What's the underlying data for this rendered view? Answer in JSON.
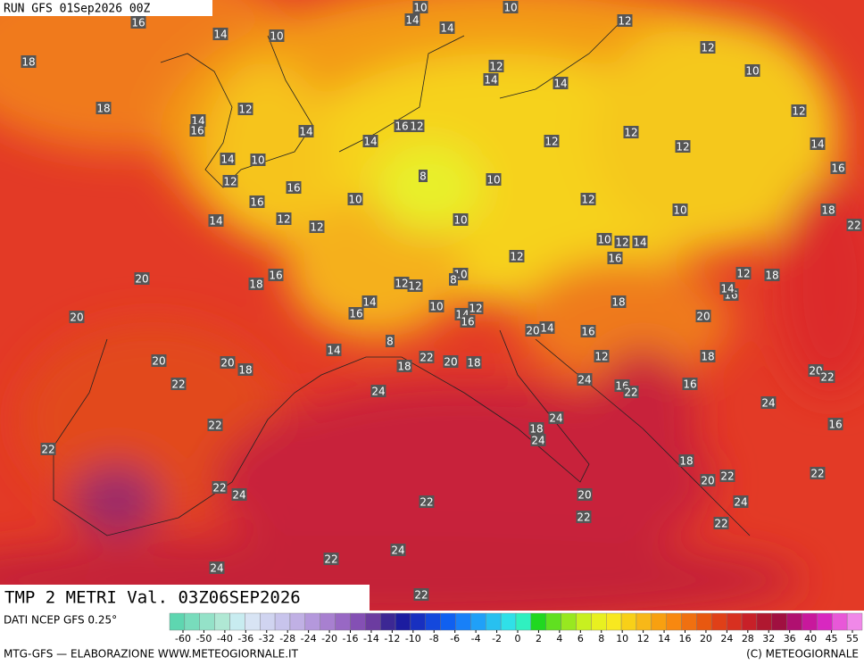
{
  "header": {
    "run": "RUN GFS 01Sep2026 00Z",
    "field": "TMP 2 METRI Val. 03Z06SEP2026"
  },
  "map": {
    "labels": [
      16,
      14,
      10,
      18,
      18,
      12,
      14,
      16,
      14,
      14,
      10,
      12,
      16,
      16,
      14,
      12,
      12,
      20,
      20,
      18,
      16,
      20,
      22,
      20,
      18,
      22,
      22,
      22,
      24,
      24,
      24,
      22,
      22,
      22,
      24,
      18,
      22,
      20,
      18,
      18,
      24,
      24,
      20,
      22,
      24,
      16,
      22,
      16,
      18,
      20,
      22,
      24,
      22,
      24,
      22,
      16,
      20,
      22,
      18,
      20,
      12,
      18,
      16,
      14,
      18,
      20,
      14,
      16,
      12,
      12,
      10,
      8,
      10,
      10,
      14,
      16,
      12,
      10,
      14,
      14,
      10,
      12,
      12,
      10,
      12,
      14,
      16,
      18,
      22,
      10,
      12,
      12,
      12,
      12,
      14,
      12,
      14,
      10,
      12,
      14,
      16,
      12,
      12,
      10,
      8,
      14,
      16,
      10,
      14,
      12,
      16,
      8,
      14
    ]
  },
  "colorbar": {
    "colors": [
      "#5ed6b0",
      "#78dcbc",
      "#94e2c8",
      "#b0e8d4",
      "#c8ecf0",
      "#d8e4f4",
      "#d0d4f0",
      "#c8c4ec",
      "#c0b0e4",
      "#b498dc",
      "#a880d0",
      "#9868c4",
      "#8450b4",
      "#6c3ca0",
      "#3c2894",
      "#1c1ca0",
      "#1830c0",
      "#1448dc",
      "#1060f0",
      "#1880f8",
      "#20a0f8",
      "#28c0f0",
      "#30e0e8",
      "#30f0c0",
      "#20d820",
      "#60e020",
      "#98e820",
      "#c8f020",
      "#e8f020",
      "#f8e820",
      "#f8d018",
      "#f8b818",
      "#f8a010",
      "#f88810",
      "#f07010",
      "#e85810",
      "#e04018",
      "#d83020",
      "#c82028",
      "#b01830",
      "#a01040",
      "#b01070",
      "#c8189c",
      "#d828c0",
      "#e858d8",
      "#f088e8"
    ],
    "ticks": [
      -60,
      -50,
      -40,
      -36,
      -32,
      -28,
      -24,
      -20,
      -16,
      -14,
      -12,
      -10,
      -8,
      -6,
      -4,
      -2,
      0,
      2,
      4,
      6,
      8,
      10,
      12,
      14,
      16,
      20,
      24,
      28,
      32,
      36,
      40,
      45,
      55
    ]
  },
  "footer": {
    "source": "DATI NCEP GFS 0.25°",
    "credit": "MTG-GFS — ELABORAZIONE WWW.METEOGIORNALE.IT",
    "copyright": "(C) METEOGIORNALE"
  }
}
